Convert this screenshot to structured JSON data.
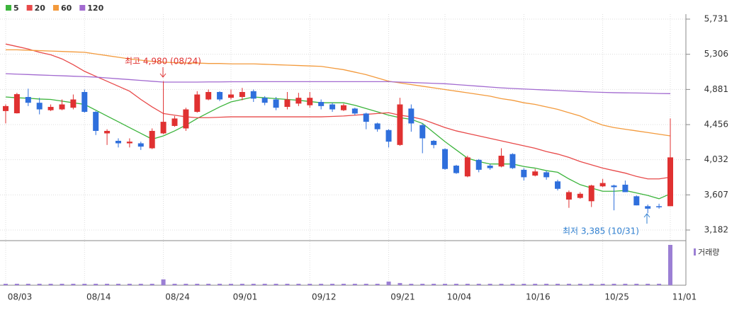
{
  "chart_data": {
    "type": "candlestick",
    "legend": [
      {
        "name": "5",
        "color": "#3cb43c"
      },
      {
        "name": "20",
        "color": "#e84a4a"
      },
      {
        "name": "60",
        "color": "#f39a3c"
      },
      {
        "name": "120",
        "color": "#a26ad0"
      }
    ],
    "categories": [
      "08/03",
      null,
      null,
      null,
      null,
      null,
      null,
      "08/14",
      null,
      null,
      null,
      null,
      null,
      null,
      "08/24",
      null,
      null,
      null,
      null,
      null,
      "09/01",
      null,
      null,
      null,
      null,
      null,
      null,
      "09/12",
      null,
      null,
      null,
      null,
      null,
      null,
      "09/21",
      null,
      null,
      null,
      null,
      "10/04",
      null,
      null,
      null,
      null,
      null,
      null,
      "10/16",
      null,
      null,
      null,
      null,
      null,
      null,
      "10/25",
      null,
      null,
      null,
      null,
      null,
      "11/01"
    ],
    "open": [
      4620,
      4593,
      4790,
      4720,
      4630,
      4640,
      4660,
      4850,
      4610,
      4350,
      4260,
      4230,
      4230,
      4170,
      4350,
      4440,
      4410,
      4610,
      4760,
      4850,
      4780,
      4790,
      4860,
      4780,
      4760,
      4670,
      4710,
      4690,
      4730,
      4700,
      4630,
      4650,
      4590,
      4470,
      4390,
      4210,
      4650,
      4450,
      4260,
      4160,
      3960,
      3830,
      4030,
      3960,
      3950,
      4100,
      3910,
      3840,
      3880,
      3770,
      3550,
      3570,
      3530,
      3710,
      3720,
      3730,
      3590,
      3470,
      3470,
      3470
    ],
    "high": [
      4700,
      4840,
      4890,
      4780,
      4700,
      4760,
      4820,
      4880,
      4620,
      4400,
      4290,
      4290,
      4250,
      4410,
      4980,
      4560,
      4660,
      4860,
      4880,
      4860,
      4880,
      4900,
      4880,
      4800,
      4790,
      4850,
      4840,
      4850,
      4760,
      4720,
      4710,
      4660,
      4600,
      4480,
      4400,
      4780,
      4700,
      4470,
      4270,
      4170,
      3970,
      4080,
      4040,
      3980,
      4170,
      4110,
      3930,
      3920,
      3900,
      3790,
      3660,
      3640,
      3730,
      3800,
      3730,
      3780,
      3600,
      3490,
      3500,
      4530
    ],
    "low": [
      4470,
      4590,
      4680,
      4580,
      4620,
      4630,
      4640,
      4600,
      4330,
      4210,
      4180,
      4180,
      4150,
      4160,
      4340,
      4430,
      4380,
      4600,
      4750,
      4740,
      4760,
      4750,
      4730,
      4690,
      4630,
      4640,
      4680,
      4660,
      4640,
      4610,
      4620,
      4570,
      4400,
      4370,
      4180,
      4200,
      4370,
      4110,
      4170,
      3910,
      3860,
      3820,
      3880,
      3910,
      3940,
      3920,
      3780,
      3830,
      3790,
      3660,
      3450,
      3560,
      3460,
      3700,
      3420,
      3640,
      3480,
      3385,
      3440,
      3470
    ],
    "close": [
      4680,
      4824,
      4720,
      4640,
      4670,
      4700,
      4760,
      4610,
      4380,
      4380,
      4230,
      4250,
      4190,
      4380,
      4490,
      4530,
      4640,
      4820,
      4850,
      4760,
      4820,
      4850,
      4770,
      4720,
      4660,
      4760,
      4780,
      4780,
      4680,
      4640,
      4690,
      4590,
      4490,
      4400,
      4250,
      4700,
      4470,
      4290,
      4210,
      3920,
      3870,
      4060,
      3910,
      3930,
      4080,
      3930,
      3820,
      3890,
      3820,
      3680,
      3640,
      3620,
      3720,
      3750,
      3700,
      3640,
      3480,
      3440,
      3460,
      4060
    ],
    "series": [
      {
        "name": "5",
        "color": "#3cb43c",
        "values": [
          4790,
          4780,
          4775,
          4765,
          4760,
          4740,
          4720,
          4700,
          4630,
          4560,
          4490,
          4420,
          4350,
          4280,
          4320,
          4380,
          4450,
          4530,
          4600,
          4670,
          4730,
          4760,
          4790,
          4780,
          4770,
          4760,
          4750,
          4735,
          4720,
          4720,
          4720,
          4690,
          4650,
          4610,
          4570,
          4540,
          4520,
          4470,
          4360,
          4250,
          4150,
          4050,
          4010,
          3980,
          3980,
          3980,
          3950,
          3930,
          3900,
          3880,
          3800,
          3730,
          3690,
          3650,
          3650,
          3660,
          3630,
          3600,
          3560,
          3620
        ]
      },
      {
        "name": "20",
        "color": "#e84a4a",
        "values": [
          5430,
          5400,
          5370,
          5330,
          5300,
          5250,
          5180,
          5100,
          5040,
          4980,
          4920,
          4860,
          4760,
          4670,
          4590,
          4570,
          4550,
          4540,
          4540,
          4545,
          4550,
          4550,
          4550,
          4550,
          4550,
          4550,
          4550,
          4550,
          4550,
          4555,
          4560,
          4570,
          4580,
          4590,
          4600,
          4570,
          4550,
          4520,
          4470,
          4420,
          4380,
          4350,
          4320,
          4290,
          4260,
          4230,
          4200,
          4170,
          4130,
          4100,
          4060,
          4010,
          3970,
          3930,
          3900,
          3870,
          3830,
          3800,
          3800,
          3820
        ]
      },
      {
        "name": "60",
        "color": "#f39a3c",
        "values": [
          5360,
          5360,
          5355,
          5350,
          5345,
          5340,
          5335,
          5330,
          5310,
          5290,
          5270,
          5250,
          5235,
          5220,
          5210,
          5205,
          5200,
          5200,
          5195,
          5195,
          5190,
          5190,
          5190,
          5185,
          5180,
          5175,
          5170,
          5165,
          5160,
          5140,
          5120,
          5090,
          5060,
          5020,
          4980,
          4960,
          4940,
          4920,
          4900,
          4880,
          4860,
          4840,
          4820,
          4800,
          4770,
          4750,
          4720,
          4700,
          4670,
          4640,
          4600,
          4560,
          4500,
          4450,
          4420,
          4400,
          4380,
          4360,
          4340,
          4320
        ]
      },
      {
        "name": "120",
        "color": "#a26ad0",
        "values": [
          5071,
          5066,
          5061,
          5056,
          5051,
          5046,
          5041,
          5036,
          5030,
          5020,
          5010,
          5000,
          4990,
          4980,
          4970,
          4970,
          4970,
          4970,
          4972,
          4972,
          4974,
          4974,
          4975,
          4975,
          4975,
          4975,
          4975,
          4975,
          4975,
          4975,
          4975,
          4975,
          4975,
          4975,
          4975,
          4970,
          4965,
          4960,
          4955,
          4950,
          4940,
          4930,
          4920,
          4910,
          4900,
          4893,
          4886,
          4880,
          4874,
          4868,
          4862,
          4856,
          4850,
          4846,
          4842,
          4840,
          4838,
          4836,
          4832,
          4830
        ]
      }
    ],
    "volume_label": "거래량",
    "volume": [
      2,
      2,
      2,
      2,
      2,
      2,
      2,
      2,
      2,
      2,
      2,
      2,
      2,
      2,
      8,
      2,
      2,
      2,
      2,
      2,
      2,
      2,
      2,
      2,
      2,
      2,
      2,
      2,
      2,
      2,
      2,
      2,
      2,
      2,
      5,
      3,
      2,
      2,
      2,
      2,
      2,
      2,
      2,
      2,
      2,
      2,
      2,
      2,
      2,
      2,
      2,
      2,
      2,
      2,
      2,
      2,
      2,
      2,
      2,
      55
    ],
    "ylim": [
      3182,
      5731
    ],
    "yticks": [
      {
        "value": 5731,
        "label": "5,731"
      },
      {
        "value": 5306,
        "label": "5,306"
      },
      {
        "value": 4881,
        "label": "4,881"
      },
      {
        "value": 4456,
        "label": "4,456"
      },
      {
        "value": 4032,
        "label": "4,032"
      },
      {
        "value": 3607,
        "label": "3,607"
      },
      {
        "value": 3182,
        "label": "3,182"
      }
    ],
    "up_color": "#e03131",
    "down_color": "#2f6fdc",
    "volume_color": "#9b7fd4",
    "annotations": [
      {
        "text": "최고 4,980 (08/24)",
        "color": "#e03131"
      },
      {
        "text": "최저 3,385 (10/31)",
        "color": "#2f7fd0"
      }
    ]
  }
}
